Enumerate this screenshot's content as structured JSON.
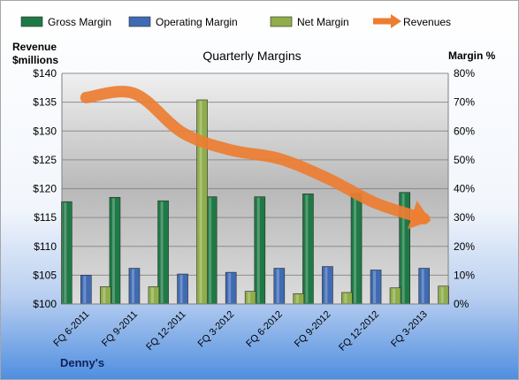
{
  "chart_data": {
    "type": "bar",
    "title": "Quarterly Margins",
    "subtitle": "Denny's",
    "left_axis_label_line1": "Revenue",
    "left_axis_label_line2": "$millions",
    "right_axis_label": "Margin %",
    "left_axis": {
      "min": 100,
      "max": 140,
      "step": 5,
      "format": "$"
    },
    "right_axis": {
      "min": 0,
      "max": 80,
      "step": 10,
      "format": "%"
    },
    "grid": true,
    "legend_position": "top",
    "categories": [
      "FQ 6-2011",
      "FQ 9-2011",
      "FQ 12-2011",
      "FQ 3-2012",
      "FQ 6-2012",
      "FQ 9-2012",
      "FQ 12-2012",
      "FQ 3-2013"
    ],
    "series": [
      {
        "name": "Gross Margin",
        "kind": "bar",
        "axis": "right",
        "color": "#1e7a45",
        "values": [
          35.5,
          37.0,
          35.8,
          37.2,
          37.2,
          38.2,
          38.4,
          38.7
        ]
      },
      {
        "name": "Operating Margin",
        "kind": "bar",
        "axis": "right",
        "color": "#3f6bb5",
        "values": [
          10.0,
          12.4,
          10.4,
          11.0,
          12.4,
          13.0,
          11.8,
          12.4
        ]
      },
      {
        "name": "Net Margin",
        "kind": "bar",
        "axis": "right",
        "color": "#8fae4a",
        "values": [
          6.0,
          6.0,
          70.8,
          4.4,
          3.6,
          4.0,
          5.6,
          6.2
        ]
      },
      {
        "name": "Revenues",
        "kind": "line",
        "axis": "left",
        "color": "#ed7d31",
        "values": [
          135.8,
          136.5,
          129.7,
          126.7,
          125.2,
          121.8,
          117.5,
          114.8
        ]
      }
    ]
  }
}
